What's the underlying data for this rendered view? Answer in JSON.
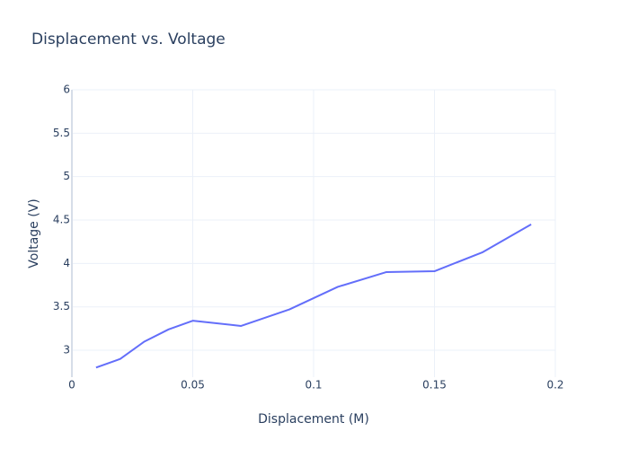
{
  "chart_data": {
    "type": "line",
    "title": "Displacement vs. Voltage",
    "x_label": "Displacement (M)",
    "y_label": "Voltage (V)",
    "x": [
      0.01,
      0.02,
      0.03,
      0.04,
      0.05,
      0.07,
      0.09,
      0.11,
      0.13,
      0.15,
      0.17,
      0.19
    ],
    "series": [
      {
        "name": "Voltage",
        "color": "#636efa",
        "values": [
          2.8,
          2.9,
          3.1,
          3.24,
          3.34,
          3.28,
          3.47,
          3.73,
          3.9,
          3.91,
          4.13,
          4.45
        ]
      }
    ],
    "xlim": [
      0,
      0.2
    ],
    "xticks": [
      0,
      0.05,
      0.1,
      0.15,
      0.2
    ],
    "ylim": [
      2.69,
      6
    ],
    "yticks": [
      3,
      3.5,
      4,
      4.5,
      5,
      5.5,
      6
    ],
    "grid": true
  }
}
